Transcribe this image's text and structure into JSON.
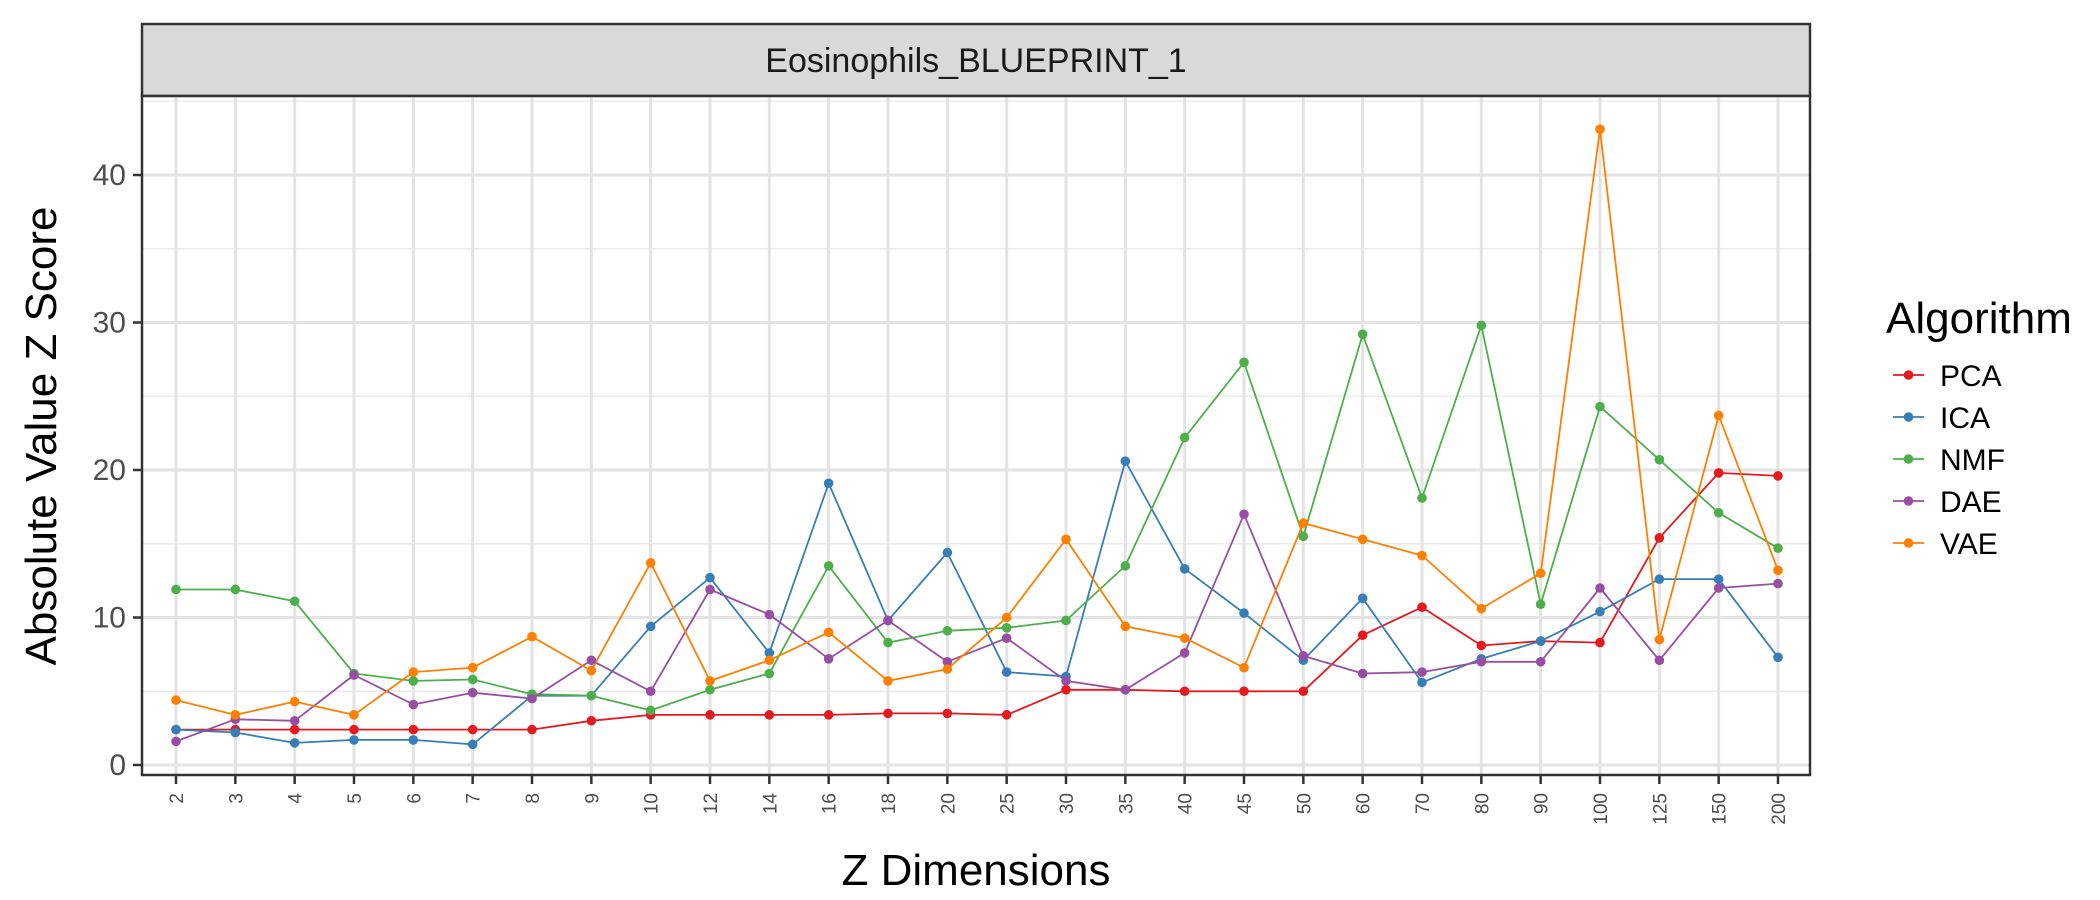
{
  "chart_data": {
    "type": "line",
    "title": "Eosinophils_BLUEPRINT_1",
    "xlabel": "Z Dimensions",
    "ylabel": "Absolute Value Z Score",
    "ylim": [
      0,
      45
    ],
    "yticks": [
      "0",
      "10",
      "20",
      "30",
      "40"
    ],
    "grid": true,
    "legend_title": "Algorithm",
    "legend_position": "right",
    "categories": [
      "2",
      "3",
      "4",
      "5",
      "6",
      "7",
      "8",
      "9",
      "10",
      "12",
      "14",
      "16",
      "18",
      "20",
      "25",
      "30",
      "35",
      "40",
      "45",
      "50",
      "60",
      "70",
      "80",
      "90",
      "100",
      "125",
      "150",
      "200"
    ],
    "series": [
      {
        "name": "PCA",
        "color": "#e41a1c",
        "values": [
          2.4,
          2.4,
          2.4,
          2.4,
          2.4,
          2.4,
          2.4,
          3.0,
          3.4,
          3.4,
          3.4,
          3.4,
          3.5,
          3.5,
          3.4,
          5.1,
          5.1,
          5.0,
          5.0,
          5.0,
          8.8,
          10.7,
          8.1,
          8.4,
          8.3,
          15.4,
          19.8,
          19.6
        ]
      },
      {
        "name": "ICA",
        "color": "#377eb8",
        "values": [
          2.4,
          2.2,
          1.5,
          1.7,
          1.7,
          1.4,
          4.7,
          4.7,
          9.4,
          12.7,
          7.6,
          19.1,
          9.8,
          14.4,
          6.3,
          6.0,
          20.6,
          13.3,
          10.3,
          7.1,
          11.3,
          5.6,
          7.2,
          8.4,
          10.4,
          12.6,
          12.6,
          7.3
        ]
      },
      {
        "name": "NMF",
        "color": "#4daf4a",
        "values": [
          11.9,
          11.9,
          11.1,
          6.2,
          5.7,
          5.8,
          4.8,
          4.7,
          3.7,
          5.1,
          6.2,
          13.5,
          8.3,
          9.1,
          9.3,
          9.8,
          13.5,
          22.2,
          27.3,
          15.5,
          29.2,
          18.1,
          29.8,
          10.9,
          24.3,
          20.7,
          17.1,
          14.7
        ]
      },
      {
        "name": "DAE",
        "color": "#984ea3",
        "values": [
          1.6,
          3.1,
          3.0,
          6.1,
          4.1,
          4.9,
          4.5,
          7.1,
          5.0,
          11.9,
          10.2,
          7.2,
          9.8,
          7.0,
          8.6,
          5.7,
          5.1,
          7.6,
          17.0,
          7.4,
          6.2,
          6.3,
          7.0,
          7.0,
          12.0,
          7.1,
          12.0,
          12.3
        ]
      },
      {
        "name": "VAE",
        "color": "#ff7f00",
        "values": [
          4.4,
          3.4,
          4.3,
          3.4,
          6.3,
          6.6,
          8.7,
          6.4,
          13.7,
          5.7,
          7.1,
          9.0,
          5.7,
          6.5,
          10.0,
          15.3,
          9.4,
          8.6,
          6.6,
          16.4,
          15.3,
          14.2,
          10.6,
          13.0,
          43.1,
          8.5,
          23.7,
          13.2
        ]
      }
    ]
  }
}
